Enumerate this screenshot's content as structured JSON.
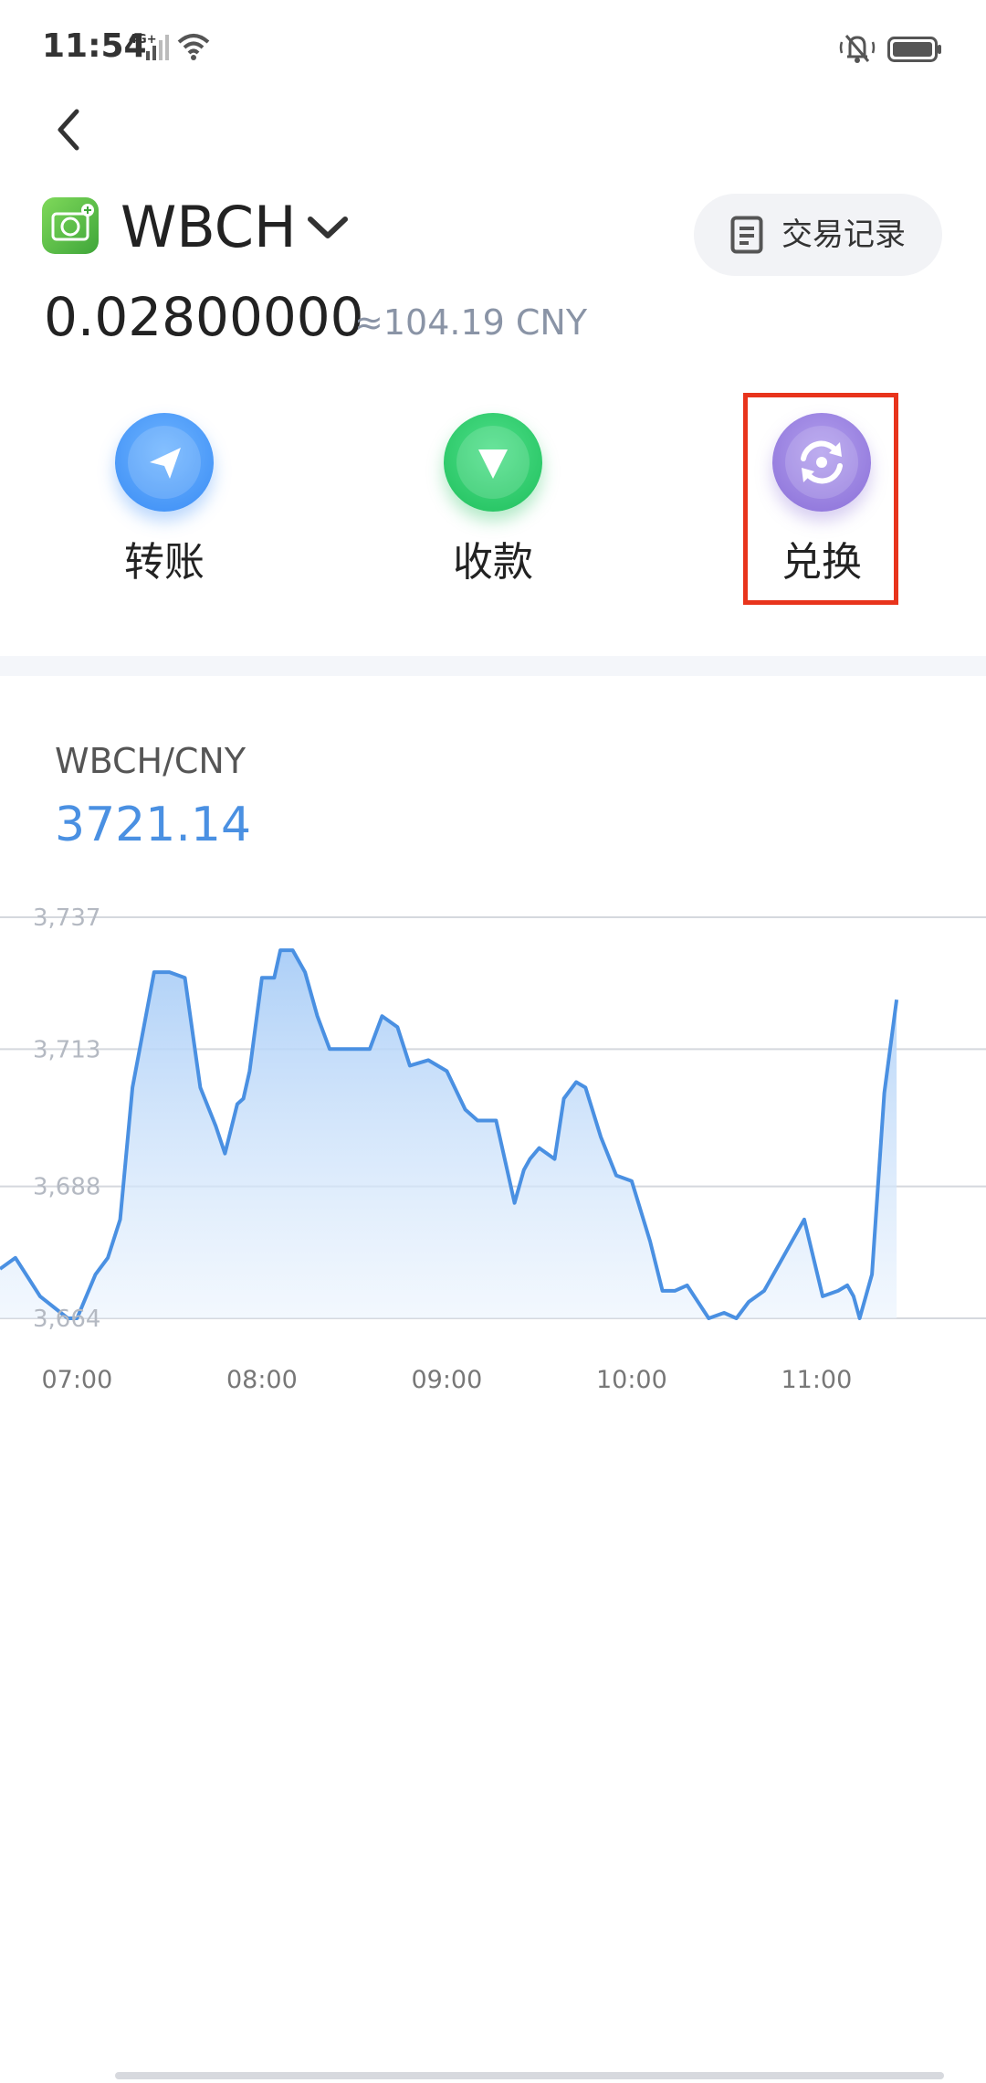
{
  "status_bar": {
    "time": "11:54",
    "network": "4G+"
  },
  "header": {
    "coin_name": "WBCH",
    "history_label": "交易记录",
    "balance": "0.02800000",
    "balance_fiat": "≈104.19 CNY"
  },
  "actions": {
    "transfer_label": "转账",
    "receive_label": "收款",
    "exchange_label": "兑换"
  },
  "colors": {
    "accent": "#4a90e2",
    "transfer": "#3a8cf5",
    "receive": "#1fbf5c",
    "exchange": "#8a6fd8",
    "highlight": "#e8341c"
  },
  "chart_data": {
    "type": "area",
    "pair": "WBCH/CNY",
    "current_price": "3721.14",
    "x_ticks": [
      "07:00",
      "08:00",
      "09:00",
      "10:00",
      "11:00"
    ],
    "y_ticks": [
      "3,737",
      "3,713",
      "3,688",
      "3,664"
    ],
    "ylim": [
      3664,
      3737
    ],
    "xlim": [
      "06:35",
      "11:55"
    ],
    "grid": true,
    "series": [
      {
        "times": [
          "06:35",
          "06:40",
          "06:48",
          "06:57",
          "07:00",
          "07:06",
          "07:10",
          "07:14",
          "07:18",
          "07:25",
          "07:30",
          "07:35",
          "07:40",
          "07:45",
          "07:48",
          "07:52",
          "07:54",
          "07:56",
          "08:00",
          "08:04",
          "08:06",
          "08:10",
          "08:14",
          "08:18",
          "08:22",
          "08:25",
          "08:30",
          "08:35",
          "08:39",
          "08:44",
          "08:48",
          "08:54",
          "09:00",
          "09:06",
          "09:10",
          "09:16",
          "09:22",
          "09:25",
          "09:27",
          "09:30",
          "09:35",
          "09:38",
          "09:42",
          "09:45",
          "09:50",
          "09:55",
          "10:00",
          "10:06",
          "10:10",
          "10:14",
          "10:18",
          "10:25",
          "10:30",
          "10:34",
          "10:38",
          "10:43",
          "10:48",
          "10:52",
          "10:56",
          "11:02",
          "11:07",
          "11:10",
          "11:12",
          "11:14",
          "11:18",
          "11:22",
          "11:26"
        ],
        "values": [
          3673,
          3675,
          3668,
          3664,
          3664,
          3672,
          3675,
          3682,
          3706,
          3727,
          3727,
          3726,
          3706,
          3699,
          3694,
          3703,
          3704,
          3709,
          3726,
          3726,
          3731,
          3731,
          3727,
          3719,
          3713,
          3713,
          3713,
          3713,
          3719,
          3717,
          3710,
          3711,
          3709,
          3702,
          3700,
          3700,
          3685,
          3691,
          3693,
          3695,
          3693,
          3704,
          3707,
          3706,
          3697,
          3690,
          3689,
          3678,
          3669,
          3669,
          3670,
          3664,
          3665,
          3664,
          3667,
          3669,
          3674,
          3678,
          3682,
          3668,
          3669,
          3670,
          3668,
          3664,
          3672,
          3705,
          3722
        ]
      }
    ]
  }
}
